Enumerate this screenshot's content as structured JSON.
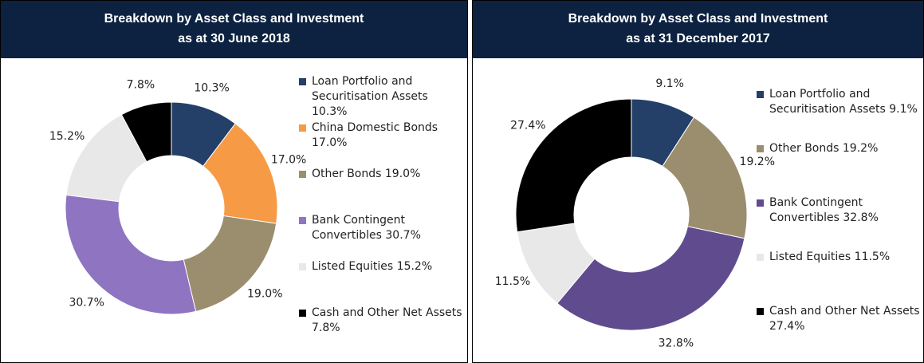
{
  "chart_data": [
    {
      "type": "pie",
      "title": "Breakdown by Asset Class and Investment",
      "subtitle": "as at 30 June 2018",
      "categories": [
        "Loan Portfolio and Securitisation Assets",
        "China Domestic Bonds",
        "Other Bonds",
        "Bank Contingent Convertibles",
        "Listed Equities",
        "Cash and Other Net Assets"
      ],
      "values": [
        10.3,
        17.0,
        19.0,
        30.7,
        15.2,
        7.8
      ],
      "value_labels": [
        "10.3%",
        "17.0%",
        "19.0%",
        "30.7%",
        "15.2%",
        "7.8%"
      ],
      "colors": [
        "#243f68",
        "#f79a45",
        "#9b8e6f",
        "#8f74c2",
        "#e8e8e8",
        "#000000"
      ]
    },
    {
      "type": "pie",
      "title": "Breakdown by Asset Class and Investment",
      "subtitle": "as at 31 December 2017",
      "categories": [
        "Loan Portfolio and Securitisation Assets",
        "Other Bonds",
        "Bank Contingent Convertibles",
        "Listed Equities",
        "Cash and Other Net Assets"
      ],
      "values": [
        9.1,
        19.2,
        32.8,
        11.5,
        27.4
      ],
      "value_labels": [
        "9.1%",
        "19.2%",
        "32.8%",
        "11.5%",
        "27.4%"
      ],
      "colors": [
        "#243f68",
        "#9b8e6f",
        "#5f4b8e",
        "#e8e8e8",
        "#000000"
      ]
    }
  ]
}
